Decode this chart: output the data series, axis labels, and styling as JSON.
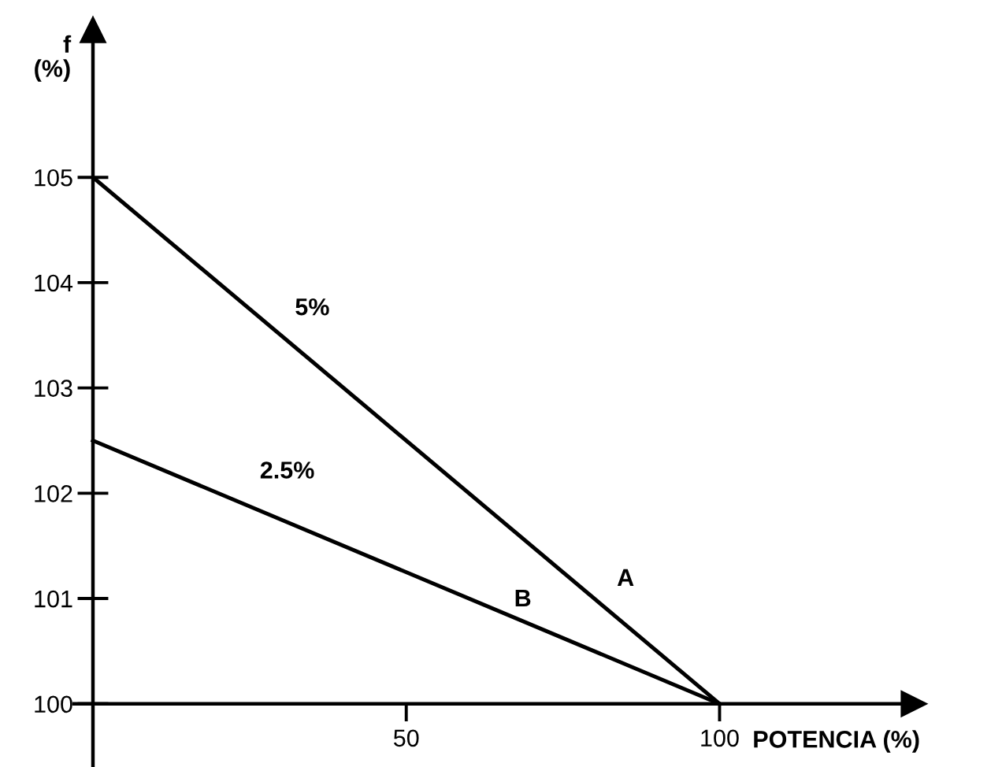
{
  "chart_data": {
    "type": "line",
    "xlabel": "POTENCIA (%)",
    "ylabel": "f (%)",
    "x": [
      0,
      100
    ],
    "series": [
      {
        "name": "A",
        "color": "#000000",
        "values": [
          105,
          100
        ]
      },
      {
        "name": "B",
        "color": "#000000",
        "values": [
          102.5,
          100
        ]
      }
    ],
    "annotations": [
      "5%",
      "2.5%"
    ],
    "xlim": [
      -3,
      131
    ],
    "ylim": [
      99.4,
      106.4
    ],
    "xticks": [
      50,
      100
    ],
    "yticks": [
      100,
      101,
      102,
      103,
      104,
      105
    ],
    "grid": false,
    "legend": false,
    "marker": "none",
    "line_style": "solid"
  }
}
